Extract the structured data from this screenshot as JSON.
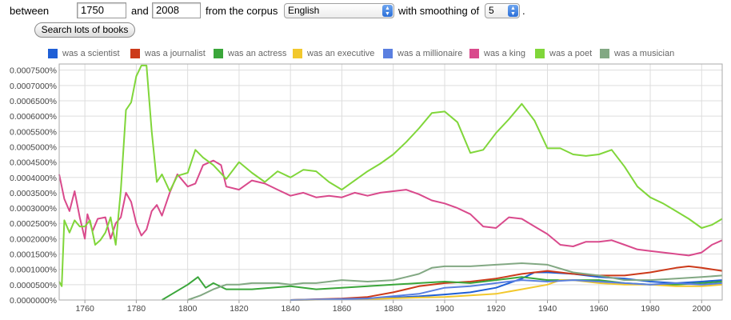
{
  "controls": {
    "between_label": "between",
    "start_year": "1750",
    "and_label": "and",
    "end_year": "2008",
    "corpus_label": "from the corpus",
    "corpus_value": "English",
    "smoothing_label": "with smoothing of",
    "smoothing_value": "5",
    "period": ".",
    "search_button": "Search lots of books"
  },
  "chart_data": {
    "type": "line",
    "xlim": [
      1750,
      2008
    ],
    "ylim": [
      0,
      7.7e-05
    ],
    "x_ticks": [
      1760,
      1780,
      1800,
      1820,
      1840,
      1860,
      1880,
      1900,
      1920,
      1940,
      1960,
      1980,
      2000
    ],
    "y_ticks": [
      0,
      5e-06,
      1e-05,
      1.5e-05,
      2e-05,
      2.5e-05,
      3e-05,
      3.5e-05,
      4e-05,
      4.5e-05,
      5e-05,
      5.5e-05,
      6e-05,
      6.5e-05,
      7e-05,
      7.5e-05
    ],
    "y_tick_labels": [
      "0.0000000%",
      "0.0000500%",
      "0.0001000%",
      "0.0001500%",
      "0.0002000%",
      "0.0002500%",
      "0.0003000%",
      "0.0003500%",
      "0.0004000%",
      "0.0004500%",
      "0.0005000%",
      "0.0005500%",
      "0.0006000%",
      "0.0006500%",
      "0.0007000%",
      "0.0007500%"
    ],
    "grid": true,
    "legend_position": "top",
    "series": [
      {
        "name": "was a scientist",
        "color": "#1f5fd6",
        "points": [
          [
            1840,
            0
          ],
          [
            1860,
            3e-07
          ],
          [
            1880,
            8e-07
          ],
          [
            1890,
            1.2e-06
          ],
          [
            1900,
            1.8e-06
          ],
          [
            1910,
            2.5e-06
          ],
          [
            1920,
            4e-06
          ],
          [
            1930,
            7e-06
          ],
          [
            1935,
            9e-06
          ],
          [
            1940,
            9e-06
          ],
          [
            1950,
            8.5e-06
          ],
          [
            1960,
            7.5e-06
          ],
          [
            1970,
            7e-06
          ],
          [
            1980,
            6e-06
          ],
          [
            1990,
            5.5e-06
          ],
          [
            2000,
            6e-06
          ],
          [
            2008,
            6.5e-06
          ]
        ]
      },
      {
        "name": "was a journalist",
        "color": "#cc3a1a",
        "points": [
          [
            1840,
            0
          ],
          [
            1860,
            5e-07
          ],
          [
            1870,
            1e-06
          ],
          [
            1880,
            2.5e-06
          ],
          [
            1890,
            4.5e-06
          ],
          [
            1900,
            5.5e-06
          ],
          [
            1910,
            6e-06
          ],
          [
            1920,
            7e-06
          ],
          [
            1930,
            8.5e-06
          ],
          [
            1940,
            9.5e-06
          ],
          [
            1950,
            8.5e-06
          ],
          [
            1960,
            8e-06
          ],
          [
            1970,
            8e-06
          ],
          [
            1980,
            9e-06
          ],
          [
            1990,
            1.05e-05
          ],
          [
            1995,
            1.1e-05
          ],
          [
            2000,
            1.05e-05
          ],
          [
            2008,
            9.5e-06
          ]
        ]
      },
      {
        "name": "was an actress",
        "color": "#3aa63a",
        "points": [
          [
            1790,
            0
          ],
          [
            1794,
            2e-06
          ],
          [
            1800,
            5e-06
          ],
          [
            1804,
            7.5e-06
          ],
          [
            1807,
            4e-06
          ],
          [
            1810,
            5.5e-06
          ],
          [
            1815,
            3.5e-06
          ],
          [
            1825,
            3.5e-06
          ],
          [
            1840,
            4.5e-06
          ],
          [
            1850,
            3.5e-06
          ],
          [
            1860,
            4e-06
          ],
          [
            1870,
            4.5e-06
          ],
          [
            1880,
            5e-06
          ],
          [
            1890,
            5.5e-06
          ],
          [
            1900,
            6e-06
          ],
          [
            1910,
            5.5e-06
          ],
          [
            1920,
            6.5e-06
          ],
          [
            1930,
            7.5e-06
          ],
          [
            1940,
            6.5e-06
          ],
          [
            1950,
            6.5e-06
          ],
          [
            1960,
            6.5e-06
          ],
          [
            1970,
            5.5e-06
          ],
          [
            1980,
            5e-06
          ],
          [
            1990,
            5e-06
          ],
          [
            2000,
            5.5e-06
          ],
          [
            2008,
            6e-06
          ]
        ]
      },
      {
        "name": "was an executive",
        "color": "#f2c82d",
        "points": [
          [
            1840,
            0
          ],
          [
            1870,
            3e-07
          ],
          [
            1890,
            8e-07
          ],
          [
            1900,
            1e-06
          ],
          [
            1910,
            1.5e-06
          ],
          [
            1920,
            2e-06
          ],
          [
            1930,
            3.5e-06
          ],
          [
            1940,
            5e-06
          ],
          [
            1945,
            6.5e-06
          ],
          [
            1950,
            6.5e-06
          ],
          [
            1960,
            5.5e-06
          ],
          [
            1970,
            5e-06
          ],
          [
            1980,
            5e-06
          ],
          [
            1990,
            4.5e-06
          ],
          [
            2000,
            4.5e-06
          ],
          [
            2008,
            5e-06
          ]
        ]
      },
      {
        "name": "was a millionaire",
        "color": "#5a7fe0",
        "points": [
          [
            1840,
            0
          ],
          [
            1870,
            5e-07
          ],
          [
            1890,
            2e-06
          ],
          [
            1900,
            4e-06
          ],
          [
            1910,
            4.5e-06
          ],
          [
            1920,
            5.5e-06
          ],
          [
            1930,
            6.5e-06
          ],
          [
            1940,
            6e-06
          ],
          [
            1950,
            6.5e-06
          ],
          [
            1960,
            6e-06
          ],
          [
            1970,
            5.5e-06
          ],
          [
            1980,
            5e-06
          ],
          [
            1990,
            5.5e-06
          ],
          [
            2000,
            5e-06
          ],
          [
            2008,
            5.5e-06
          ]
        ]
      },
      {
        "name": "was a king",
        "color": "#d94a8c",
        "points": [
          [
            1750,
            4.1e-05
          ],
          [
            1752,
            3.3e-05
          ],
          [
            1754,
            2.9e-05
          ],
          [
            1756,
            3.55e-05
          ],
          [
            1758,
            2.7e-05
          ],
          [
            1760,
            2e-05
          ],
          [
            1761,
            2.8e-05
          ],
          [
            1763,
            2.25e-05
          ],
          [
            1765,
            2.65e-05
          ],
          [
            1768,
            2.7e-05
          ],
          [
            1770,
            2e-05
          ],
          [
            1772,
            2.5e-05
          ],
          [
            1774,
            2.7e-05
          ],
          [
            1776,
            3.5e-05
          ],
          [
            1778,
            3.2e-05
          ],
          [
            1780,
            2.5e-05
          ],
          [
            1782,
            2.1e-05
          ],
          [
            1784,
            2.3e-05
          ],
          [
            1786,
            2.9e-05
          ],
          [
            1788,
            3.1e-05
          ],
          [
            1790,
            2.75e-05
          ],
          [
            1793,
            3.5e-05
          ],
          [
            1796,
            4.1e-05
          ],
          [
            1800,
            3.7e-05
          ],
          [
            1803,
            3.8e-05
          ],
          [
            1806,
            4.4e-05
          ],
          [
            1810,
            4.55e-05
          ],
          [
            1813,
            4.4e-05
          ],
          [
            1815,
            3.7e-05
          ],
          [
            1820,
            3.6e-05
          ],
          [
            1825,
            3.9e-05
          ],
          [
            1830,
            3.8e-05
          ],
          [
            1835,
            3.6e-05
          ],
          [
            1840,
            3.4e-05
          ],
          [
            1845,
            3.5e-05
          ],
          [
            1850,
            3.35e-05
          ],
          [
            1855,
            3.4e-05
          ],
          [
            1860,
            3.35e-05
          ],
          [
            1865,
            3.5e-05
          ],
          [
            1870,
            3.4e-05
          ],
          [
            1875,
            3.5e-05
          ],
          [
            1880,
            3.55e-05
          ],
          [
            1885,
            3.6e-05
          ],
          [
            1890,
            3.45e-05
          ],
          [
            1895,
            3.25e-05
          ],
          [
            1900,
            3.15e-05
          ],
          [
            1905,
            3e-05
          ],
          [
            1910,
            2.8e-05
          ],
          [
            1915,
            2.4e-05
          ],
          [
            1920,
            2.35e-05
          ],
          [
            1925,
            2.7e-05
          ],
          [
            1930,
            2.65e-05
          ],
          [
            1935,
            2.4e-05
          ],
          [
            1940,
            2.15e-05
          ],
          [
            1945,
            1.8e-05
          ],
          [
            1950,
            1.75e-05
          ],
          [
            1955,
            1.9e-05
          ],
          [
            1960,
            1.9e-05
          ],
          [
            1965,
            1.95e-05
          ],
          [
            1970,
            1.8e-05
          ],
          [
            1975,
            1.65e-05
          ],
          [
            1980,
            1.6e-05
          ],
          [
            1985,
            1.55e-05
          ],
          [
            1990,
            1.5e-05
          ],
          [
            1995,
            1.45e-05
          ],
          [
            2000,
            1.55e-05
          ],
          [
            2004,
            1.8e-05
          ],
          [
            2008,
            1.95e-05
          ]
        ]
      },
      {
        "name": "was a poet",
        "color": "#80d63a",
        "points": [
          [
            1750,
            6e-06
          ],
          [
            1751,
            4.5e-06
          ],
          [
            1752,
            2.6e-05
          ],
          [
            1754,
            2.2e-05
          ],
          [
            1756,
            2.6e-05
          ],
          [
            1758,
            2.4e-05
          ],
          [
            1760,
            2.4e-05
          ],
          [
            1762,
            2.6e-05
          ],
          [
            1764,
            1.8e-05
          ],
          [
            1766,
            1.95e-05
          ],
          [
            1768,
            2.2e-05
          ],
          [
            1770,
            2.7e-05
          ],
          [
            1772,
            1.8e-05
          ],
          [
            1774,
            3.6e-05
          ],
          [
            1776,
            6.2e-05
          ],
          [
            1778,
            6.45e-05
          ],
          [
            1780,
            7.3e-05
          ],
          [
            1782,
            7.65e-05
          ],
          [
            1784,
            7.65e-05
          ],
          [
            1786,
            5.5e-05
          ],
          [
            1788,
            3.85e-05
          ],
          [
            1790,
            4.1e-05
          ],
          [
            1793,
            3.55e-05
          ],
          [
            1796,
            4.05e-05
          ],
          [
            1800,
            4.15e-05
          ],
          [
            1803,
            4.9e-05
          ],
          [
            1806,
            4.65e-05
          ],
          [
            1810,
            4.4e-05
          ],
          [
            1815,
            3.95e-05
          ],
          [
            1820,
            4.5e-05
          ],
          [
            1825,
            4.15e-05
          ],
          [
            1830,
            3.85e-05
          ],
          [
            1835,
            4.2e-05
          ],
          [
            1840,
            4e-05
          ],
          [
            1845,
            4.25e-05
          ],
          [
            1850,
            4.2e-05
          ],
          [
            1855,
            3.85e-05
          ],
          [
            1860,
            3.6e-05
          ],
          [
            1865,
            3.9e-05
          ],
          [
            1870,
            4.2e-05
          ],
          [
            1875,
            4.45e-05
          ],
          [
            1880,
            4.75e-05
          ],
          [
            1885,
            5.15e-05
          ],
          [
            1890,
            5.6e-05
          ],
          [
            1895,
            6.1e-05
          ],
          [
            1900,
            6.15e-05
          ],
          [
            1905,
            5.8e-05
          ],
          [
            1910,
            4.8e-05
          ],
          [
            1915,
            4.9e-05
          ],
          [
            1920,
            5.45e-05
          ],
          [
            1925,
            5.9e-05
          ],
          [
            1930,
            6.4e-05
          ],
          [
            1935,
            5.85e-05
          ],
          [
            1940,
            4.95e-05
          ],
          [
            1945,
            4.95e-05
          ],
          [
            1950,
            4.75e-05
          ],
          [
            1955,
            4.7e-05
          ],
          [
            1960,
            4.75e-05
          ],
          [
            1965,
            4.9e-05
          ],
          [
            1970,
            4.35e-05
          ],
          [
            1975,
            3.7e-05
          ],
          [
            1980,
            3.35e-05
          ],
          [
            1985,
            3.15e-05
          ],
          [
            1990,
            2.9e-05
          ],
          [
            1995,
            2.65e-05
          ],
          [
            2000,
            2.35e-05
          ],
          [
            2004,
            2.45e-05
          ],
          [
            2008,
            2.65e-05
          ]
        ]
      },
      {
        "name": "was a musician",
        "color": "#82a883",
        "points": [
          [
            1800,
            0
          ],
          [
            1805,
            1.5e-06
          ],
          [
            1810,
            3.5e-06
          ],
          [
            1815,
            5e-06
          ],
          [
            1820,
            5e-06
          ],
          [
            1825,
            5.5e-06
          ],
          [
            1830,
            5.5e-06
          ],
          [
            1835,
            5.5e-06
          ],
          [
            1840,
            5e-06
          ],
          [
            1845,
            5.5e-06
          ],
          [
            1850,
            5.5e-06
          ],
          [
            1860,
            6.5e-06
          ],
          [
            1870,
            6e-06
          ],
          [
            1880,
            6.5e-06
          ],
          [
            1885,
            7.5e-06
          ],
          [
            1890,
            8.5e-06
          ],
          [
            1895,
            1.05e-05
          ],
          [
            1900,
            1.1e-05
          ],
          [
            1910,
            1.1e-05
          ],
          [
            1920,
            1.15e-05
          ],
          [
            1930,
            1.2e-05
          ],
          [
            1940,
            1.15e-05
          ],
          [
            1950,
            9e-06
          ],
          [
            1960,
            8e-06
          ],
          [
            1970,
            6.5e-06
          ],
          [
            1980,
            6.5e-06
          ],
          [
            1990,
            7e-06
          ],
          [
            2000,
            7.5e-06
          ],
          [
            2008,
            8e-06
          ]
        ]
      }
    ]
  }
}
